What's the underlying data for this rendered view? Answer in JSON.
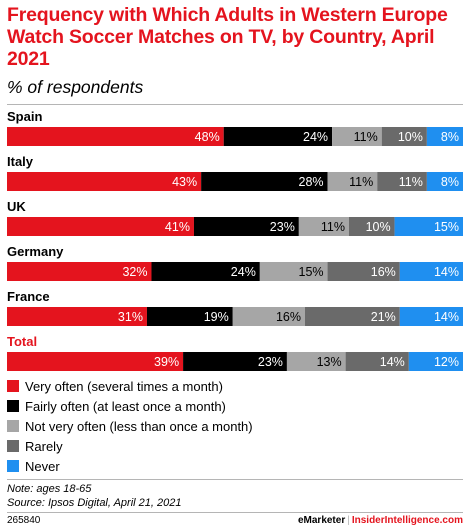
{
  "header": {
    "title": "Frequency with Which Adults in Western Europe Watch Soccer Matches on TV, by Country, April 2021",
    "subtitle": "% of respondents"
  },
  "chart_data": {
    "type": "bar",
    "orientation": "horizontal",
    "stacked": true,
    "categories": [
      "Spain",
      "Italy",
      "UK",
      "Germany",
      "France",
      "Total"
    ],
    "highlight_category": "Total",
    "value_suffix": "%",
    "series": [
      {
        "name": "Very often (several times a month)",
        "color": "#e4141e",
        "values": [
          48,
          43,
          41,
          32,
          31,
          39
        ]
      },
      {
        "name": "Fairly often (at least once a month)",
        "color": "#000000",
        "values": [
          24,
          28,
          23,
          24,
          19,
          23
        ]
      },
      {
        "name": "Not very often (less than once a month)",
        "color": "#a6a6a6",
        "values": [
          11,
          11,
          11,
          15,
          16,
          13
        ]
      },
      {
        "name": "Rarely",
        "color": "#6a6a6a",
        "values": [
          10,
          11,
          10,
          16,
          21,
          14
        ]
      },
      {
        "name": "Never",
        "color": "#1f8ff0",
        "values": [
          8,
          8,
          15,
          14,
          14,
          12
        ]
      }
    ],
    "legend": "bottom-left"
  },
  "notes": {
    "note": "Note: ages 18-65",
    "source": "Source: Ipsos Digital, April 21, 2021"
  },
  "footer": {
    "id": "265840",
    "brand_left": "eMarketer",
    "separator": "|",
    "brand_right": "InsiderIntelligence.com"
  }
}
